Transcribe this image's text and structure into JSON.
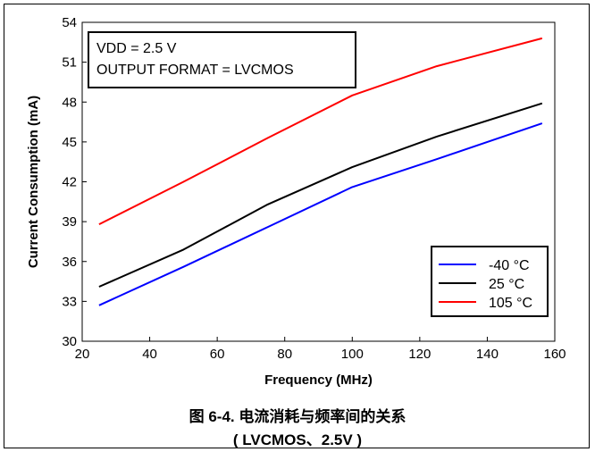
{
  "chart_data": {
    "type": "line",
    "xlabel": "Frequency (MHz)",
    "ylabel": "Current Consumption (mA)",
    "xlim": [
      20,
      160
    ],
    "ylim": [
      30,
      54
    ],
    "xticks": [
      20,
      40,
      60,
      80,
      100,
      120,
      140,
      160
    ],
    "yticks": [
      30,
      33,
      36,
      39,
      42,
      45,
      48,
      51,
      54
    ],
    "grid": false,
    "annotation_lines": [
      "VDD = 2.5 V",
      "OUTPUT FORMAT = LVCMOS"
    ],
    "legend_position": "bottom-right",
    "series": [
      {
        "name": "-40 °C",
        "color": "#0000ff",
        "x": [
          25,
          50,
          75,
          100,
          125,
          156.25
        ],
        "y": [
          32.7,
          35.6,
          38.6,
          41.6,
          43.7,
          46.4
        ]
      },
      {
        "name": "25 °C",
        "color": "#000000",
        "x": [
          25,
          50,
          75,
          100,
          125,
          156.25
        ],
        "y": [
          34.1,
          36.9,
          40.3,
          43.1,
          45.4,
          47.9
        ]
      },
      {
        "name": "105 °C",
        "color": "#ff0000",
        "x": [
          25,
          50,
          75,
          100,
          125,
          156.25
        ],
        "y": [
          38.8,
          42.0,
          45.3,
          48.5,
          50.7,
          52.8
        ]
      }
    ]
  },
  "caption": {
    "line1": "图 6-4. 电流消耗与频率间的关系",
    "line2": "( LVCMOS、2.5V )"
  }
}
